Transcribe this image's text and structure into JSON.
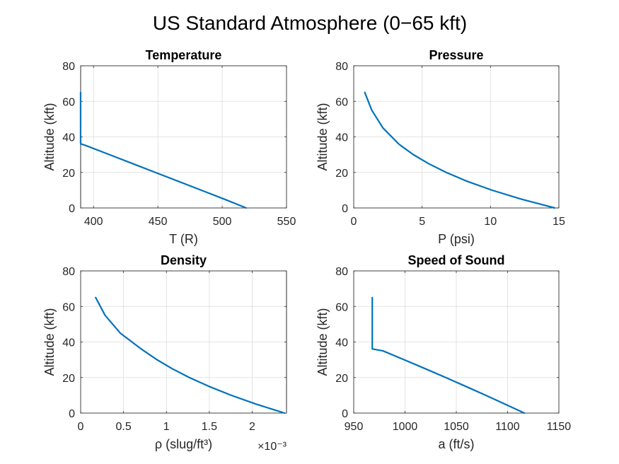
{
  "figure": {
    "title": "US Standard Atmosphere (0−65 kft)"
  },
  "colors": {
    "line": "#0072BD",
    "axis": "#262626",
    "grid": "#dcdcdc"
  },
  "chart_data": [
    {
      "type": "line",
      "title": "Temperature",
      "xlabel": "T (R)",
      "ylabel": "Altitude (kft)",
      "xlim": [
        390,
        550
      ],
      "ylim": [
        0,
        80
      ],
      "xticks": [
        400,
        450,
        500,
        550
      ],
      "yticks": [
        0,
        20,
        40,
        60,
        80
      ],
      "xtick_labels": [
        "400",
        "450",
        "500",
        "550"
      ],
      "ytick_labels": [
        "0",
        "20",
        "40",
        "60",
        "80"
      ],
      "exponent_label": "",
      "grid": true,
      "series": [
        {
          "x": [
            518.67,
            501.5,
            483.7,
            465.9,
            448.0,
            430.2,
            412.4,
            394.5,
            389.97,
            389.97,
            389.97,
            389.97
          ],
          "y": [
            0,
            5,
            10,
            15,
            20,
            25,
            30,
            35,
            36.09,
            45,
            55,
            65
          ]
        }
      ]
    },
    {
      "type": "line",
      "title": "Pressure",
      "xlabel": "P (psi)",
      "ylabel": "Altitude (kft)",
      "xlim": [
        0,
        15
      ],
      "ylim": [
        0,
        80
      ],
      "xticks": [
        0,
        5,
        10,
        15
      ],
      "yticks": [
        0,
        20,
        40,
        60,
        80
      ],
      "xtick_labels": [
        "0",
        "5",
        "10",
        "15"
      ],
      "ytick_labels": [
        "0",
        "20",
        "40",
        "60",
        "80"
      ],
      "exponent_label": "",
      "grid": true,
      "series": [
        {
          "x": [
            14.7,
            12.23,
            10.11,
            8.29,
            6.76,
            5.46,
            4.36,
            3.46,
            3.28,
            2.14,
            1.32,
            0.81
          ],
          "y": [
            0,
            5,
            10,
            15,
            20,
            25,
            30,
            35,
            36.09,
            45,
            55,
            65
          ]
        }
      ]
    },
    {
      "type": "line",
      "title": "Density",
      "xlabel": "ρ (slug/ft³)",
      "ylabel": "Altitude (kft)",
      "xlim": [
        0,
        0.0024
      ],
      "ylim": [
        0,
        80
      ],
      "xticks": [
        0,
        0.0005,
        0.001,
        0.0015,
        0.002
      ],
      "yticks": [
        0,
        20,
        40,
        60,
        80
      ],
      "xtick_labels": [
        "0",
        "0.5",
        "1",
        "1.5",
        "2"
      ],
      "ytick_labels": [
        "0",
        "20",
        "40",
        "60",
        "80"
      ],
      "exponent_label": "×10⁻³",
      "grid": true,
      "series": [
        {
          "x": [
            0.002377,
            0.002048,
            0.001756,
            0.001496,
            0.001267,
            0.001066,
            0.000891,
            0.000738,
            0.000706,
            0.000462,
            0.000285,
            0.000175
          ],
          "y": [
            0,
            5,
            10,
            15,
            20,
            25,
            30,
            35,
            36.09,
            45,
            55,
            65
          ]
        }
      ]
    },
    {
      "type": "line",
      "title": "Speed of Sound",
      "xlabel": "a (ft/s)",
      "ylabel": "Altitude (kft)",
      "xlim": [
        950,
        1150
      ],
      "ylim": [
        0,
        80
      ],
      "xticks": [
        950,
        1000,
        1050,
        1100,
        1150
      ],
      "yticks": [
        0,
        20,
        40,
        60,
        80
      ],
      "xtick_labels": [
        "950",
        "1000",
        "1050",
        "1100",
        "1150"
      ],
      "ytick_labels": [
        "0",
        "20",
        "40",
        "60",
        "80"
      ],
      "exponent_label": "",
      "grid": true,
      "series": [
        {
          "x": [
            1116.4,
            1097.7,
            1078.7,
            1059.3,
            1039.7,
            1019.6,
            999.2,
            978.5,
            968.1,
            968.1,
            968.1,
            968.1
          ],
          "y": [
            0,
            5,
            10,
            15,
            20,
            25,
            30,
            35,
            36.09,
            45,
            55,
            65
          ]
        }
      ]
    }
  ]
}
